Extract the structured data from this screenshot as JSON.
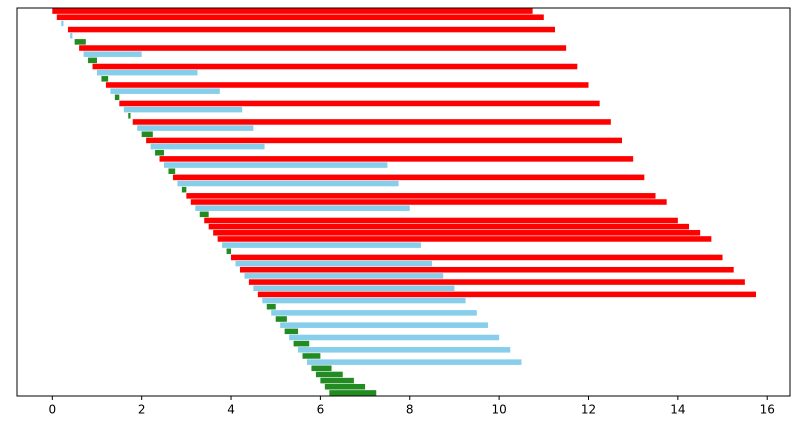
{
  "chart_data": {
    "type": "broken_barh",
    "xlim": [
      -0.79,
      16.51
    ],
    "xticks": [
      0,
      2,
      4,
      6,
      8,
      10,
      12,
      14,
      16
    ],
    "bars": [
      {
        "start": 0.0,
        "end": 10.75,
        "color": "#ff0000"
      },
      {
        "start": 0.1,
        "end": 11.0,
        "color": "#ff0000"
      },
      {
        "start": 0.2,
        "end": 0.25,
        "color": "#87ceeb"
      },
      {
        "start": 0.35,
        "end": 11.25,
        "color": "#ff0000"
      },
      {
        "start": 0.4,
        "end": 0.45,
        "color": "#87ceeb"
      },
      {
        "start": 0.5,
        "end": 0.75,
        "color": "#228b22"
      },
      {
        "start": 0.6,
        "end": 11.5,
        "color": "#ff0000"
      },
      {
        "start": 0.7,
        "end": 2.0,
        "color": "#87ceeb"
      },
      {
        "start": 0.8,
        "end": 1.0,
        "color": "#228b22"
      },
      {
        "start": 0.9,
        "end": 11.75,
        "color": "#ff0000"
      },
      {
        "start": 1.0,
        "end": 3.25,
        "color": "#87ceeb"
      },
      {
        "start": 1.1,
        "end": 1.25,
        "color": "#228b22"
      },
      {
        "start": 1.2,
        "end": 12.0,
        "color": "#ff0000"
      },
      {
        "start": 1.3,
        "end": 3.75,
        "color": "#87ceeb"
      },
      {
        "start": 1.4,
        "end": 1.5,
        "color": "#228b22"
      },
      {
        "start": 1.5,
        "end": 12.25,
        "color": "#ff0000"
      },
      {
        "start": 1.6,
        "end": 4.25,
        "color": "#87ceeb"
      },
      {
        "start": 1.7,
        "end": 1.75,
        "color": "#228b22"
      },
      {
        "start": 1.8,
        "end": 12.5,
        "color": "#ff0000"
      },
      {
        "start": 1.9,
        "end": 4.5,
        "color": "#87ceeb"
      },
      {
        "start": 2.0,
        "end": 2.25,
        "color": "#228b22"
      },
      {
        "start": 2.1,
        "end": 12.75,
        "color": "#ff0000"
      },
      {
        "start": 2.2,
        "end": 4.75,
        "color": "#87ceeb"
      },
      {
        "start": 2.3,
        "end": 2.5,
        "color": "#228b22"
      },
      {
        "start": 2.4,
        "end": 13.0,
        "color": "#ff0000"
      },
      {
        "start": 2.5,
        "end": 7.5,
        "color": "#87ceeb"
      },
      {
        "start": 2.6,
        "end": 2.75,
        "color": "#228b22"
      },
      {
        "start": 2.7,
        "end": 13.25,
        "color": "#ff0000"
      },
      {
        "start": 2.8,
        "end": 7.75,
        "color": "#87ceeb"
      },
      {
        "start": 2.9,
        "end": 3.0,
        "color": "#228b22"
      },
      {
        "start": 3.0,
        "end": 13.5,
        "color": "#ff0000"
      },
      {
        "start": 3.1,
        "end": 13.75,
        "color": "#ff0000"
      },
      {
        "start": 3.2,
        "end": 8.0,
        "color": "#87ceeb"
      },
      {
        "start": 3.3,
        "end": 3.5,
        "color": "#228b22"
      },
      {
        "start": 3.4,
        "end": 14.0,
        "color": "#ff0000"
      },
      {
        "start": 3.5,
        "end": 14.25,
        "color": "#ff0000"
      },
      {
        "start": 3.6,
        "end": 14.5,
        "color": "#ff0000"
      },
      {
        "start": 3.7,
        "end": 14.75,
        "color": "#ff0000"
      },
      {
        "start": 3.8,
        "end": 8.25,
        "color": "#87ceeb"
      },
      {
        "start": 3.9,
        "end": 4.0,
        "color": "#228b22"
      },
      {
        "start": 4.0,
        "end": 15.0,
        "color": "#ff0000"
      },
      {
        "start": 4.1,
        "end": 8.5,
        "color": "#87ceeb"
      },
      {
        "start": 4.2,
        "end": 15.25,
        "color": "#ff0000"
      },
      {
        "start": 4.3,
        "end": 8.75,
        "color": "#87ceeb"
      },
      {
        "start": 4.4,
        "end": 15.5,
        "color": "#ff0000"
      },
      {
        "start": 4.5,
        "end": 9.0,
        "color": "#87ceeb"
      },
      {
        "start": 4.6,
        "end": 15.75,
        "color": "#ff0000"
      },
      {
        "start": 4.7,
        "end": 9.25,
        "color": "#87ceeb"
      },
      {
        "start": 4.8,
        "end": 5.0,
        "color": "#228b22"
      },
      {
        "start": 4.9,
        "end": 9.5,
        "color": "#87ceeb"
      },
      {
        "start": 5.0,
        "end": 5.25,
        "color": "#228b22"
      },
      {
        "start": 5.1,
        "end": 9.75,
        "color": "#87ceeb"
      },
      {
        "start": 5.2,
        "end": 5.5,
        "color": "#228b22"
      },
      {
        "start": 5.3,
        "end": 10.0,
        "color": "#87ceeb"
      },
      {
        "start": 5.4,
        "end": 5.75,
        "color": "#228b22"
      },
      {
        "start": 5.5,
        "end": 10.25,
        "color": "#87ceeb"
      },
      {
        "start": 5.6,
        "end": 6.0,
        "color": "#228b22"
      },
      {
        "start": 5.7,
        "end": 10.5,
        "color": "#87ceeb"
      },
      {
        "start": 5.8,
        "end": 6.25,
        "color": "#228b22"
      },
      {
        "start": 5.9,
        "end": 6.5,
        "color": "#228b22"
      },
      {
        "start": 6.0,
        "end": 6.75,
        "color": "#228b22"
      },
      {
        "start": 6.1,
        "end": 7.0,
        "color": "#228b22"
      },
      {
        "start": 6.2,
        "end": 7.25,
        "color": "#228b22"
      }
    ]
  }
}
